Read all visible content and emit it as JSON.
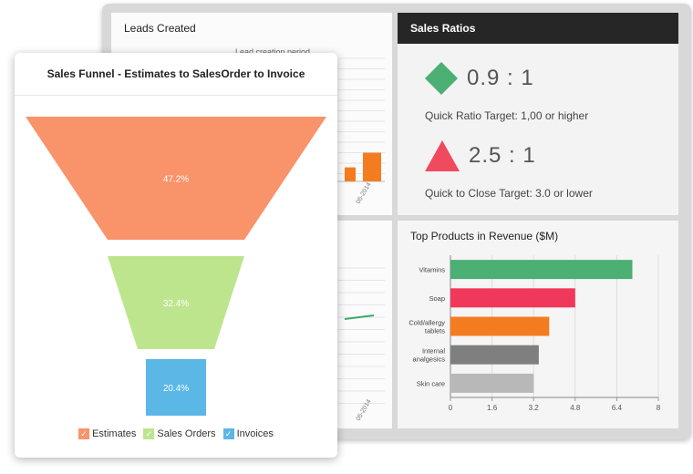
{
  "leads": {
    "title": "Leads Created",
    "subtitle": "Lead creation period",
    "x_tick": "05-2014",
    "bar_color": "#f47c20",
    "bars": [
      0.22,
      0.45
    ]
  },
  "ratios": {
    "title": "Sales Ratios",
    "items": [
      {
        "value": "0.9 : 1",
        "target": "Quick Ratio Target: 1,00 or higher",
        "icon": "diamond-icon",
        "color": "#4caf74"
      },
      {
        "value": "2.5 : 1",
        "target": "Quick to Close Target: 3.0 or lower",
        "icon": "triangle-icon",
        "color": "#f04a5e"
      }
    ]
  },
  "bottom_left": {
    "x_tick": "05-2014",
    "line_color": "#3aaa6a"
  },
  "funnel": {
    "title": "Sales Funnel - Estimates to SalesOrder to Invoice",
    "legend": [
      {
        "label": "Estimates",
        "color": "#f9936a"
      },
      {
        "label": "Sales Orders",
        "color": "#bde58e"
      },
      {
        "label": "Invoices",
        "color": "#5ab7e6"
      }
    ]
  },
  "chart_data": [
    {
      "type": "funnel",
      "title": "Sales Funnel - Estimates to SalesOrder to Invoice",
      "categories": [
        "Estimates",
        "Sales Orders",
        "Invoices"
      ],
      "values": [
        47.2,
        32.4,
        20.4
      ],
      "labels": [
        "47.2%",
        "32.4%",
        "20.4%"
      ],
      "colors": [
        "#f9936a",
        "#bde58e",
        "#5ab7e6"
      ]
    },
    {
      "type": "bar",
      "orientation": "horizontal",
      "title": "Top Products in Revenue ($M)",
      "categories": [
        [
          "Vitamins"
        ],
        [
          "Soap"
        ],
        [
          "Cold/allergy",
          "tablets"
        ],
        [
          "Internal",
          "analgesics"
        ],
        [
          "Skin care"
        ]
      ],
      "values": [
        7.0,
        4.8,
        3.8,
        3.4,
        3.2
      ],
      "colors": [
        "#4caf74",
        "#f0395a",
        "#f47c20",
        "#7f7f7f",
        "#b8b8b8"
      ],
      "xlim": [
        0,
        8
      ],
      "x_ticks": [
        "0",
        "1.6",
        "3.2",
        "4.8",
        "6.4",
        "8"
      ],
      "grid": true
    }
  ]
}
